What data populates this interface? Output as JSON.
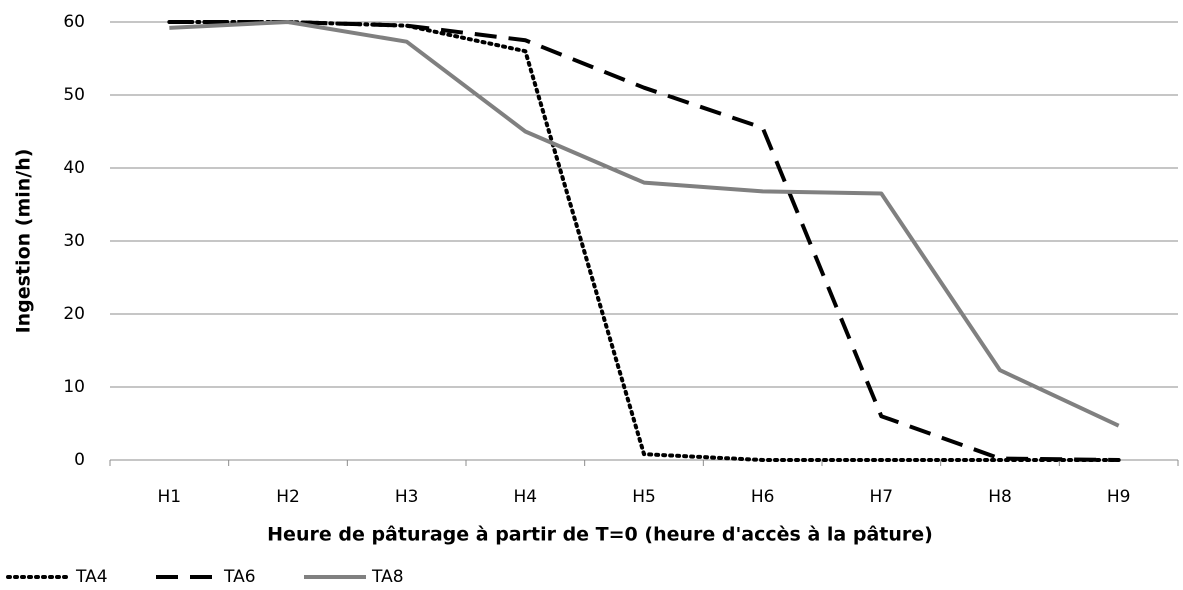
{
  "chart_data": {
    "type": "line",
    "xlabel": "Heure de pâturage à partir de T=0 (heure d'accès à la pâture)",
    "ylabel": "Ingestion (min/h)",
    "categories": [
      "H1",
      "H2",
      "H3",
      "H4",
      "H5",
      "H6",
      "H7",
      "H8",
      "H9"
    ],
    "series": [
      {
        "name": "TA4",
        "color": "#000000",
        "line_style": "dotted",
        "values": [
          60,
          60,
          59.5,
          56,
          0.8,
          0,
          0,
          0,
          0
        ]
      },
      {
        "name": "TA6",
        "color": "#000000",
        "line_style": "dashed",
        "values": [
          60,
          60,
          59.5,
          57.5,
          51,
          45.5,
          6,
          0.2,
          0
        ]
      },
      {
        "name": "TA8",
        "color": "#808080",
        "line_style": "solid",
        "values": [
          59.2,
          60,
          57.3,
          45,
          38,
          36.8,
          36.5,
          12.3,
          4.7
        ]
      }
    ],
    "ylim": [
      0,
      60
    ],
    "yticks": [
      0,
      10,
      20,
      30,
      40,
      50,
      60
    ],
    "grid": true,
    "legend": "bottom-left"
  }
}
